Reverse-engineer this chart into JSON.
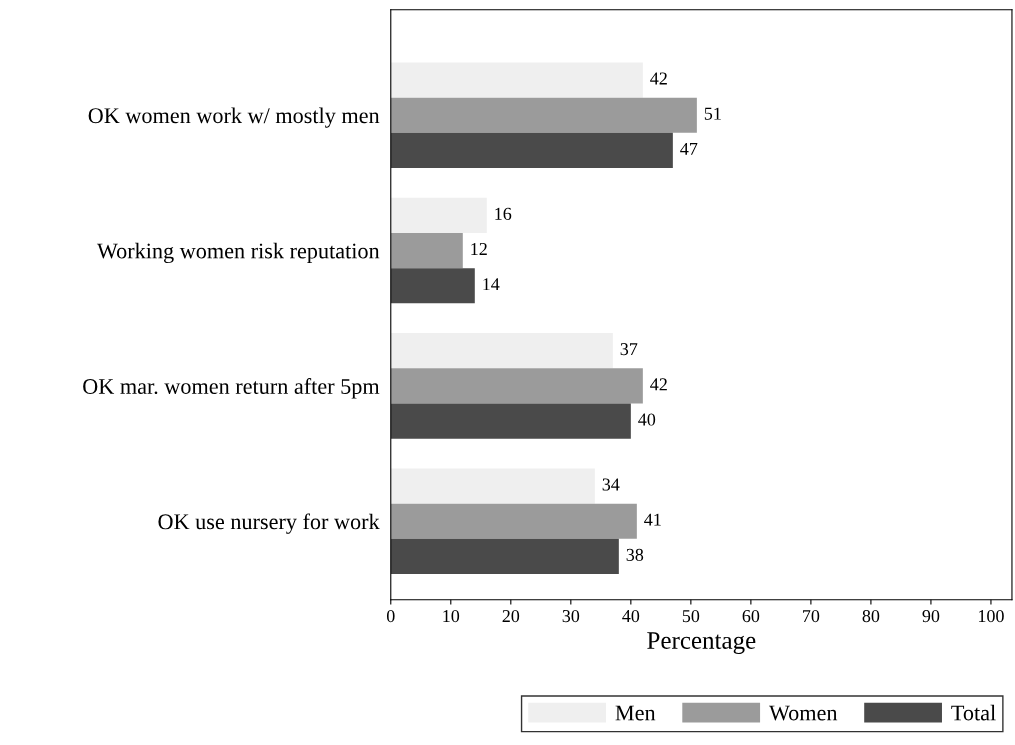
{
  "chart_data": {
    "type": "bar",
    "orientation": "horizontal",
    "xlabel": "Percentage",
    "categories": [
      "OK women work w/ mostly men",
      "Working women risk reputation",
      "OK mar. women return after 5pm",
      "OK use nursery for work"
    ],
    "series": [
      {
        "name": "Men",
        "color": "#efefef",
        "values": [
          42,
          16,
          37,
          34
        ]
      },
      {
        "name": "Women",
        "color": "#9b9b9b",
        "values": [
          51,
          12,
          42,
          41
        ]
      },
      {
        "name": "Total",
        "color": "#4a4a4a",
        "values": [
          47,
          14,
          40,
          38
        ]
      }
    ],
    "xlim": [
      0,
      103.5
    ],
    "xticks": [
      0,
      10,
      20,
      30,
      40,
      50,
      60,
      70,
      80,
      90,
      100
    ],
    "data_labels": true,
    "legend": "bottom",
    "grid": false
  }
}
